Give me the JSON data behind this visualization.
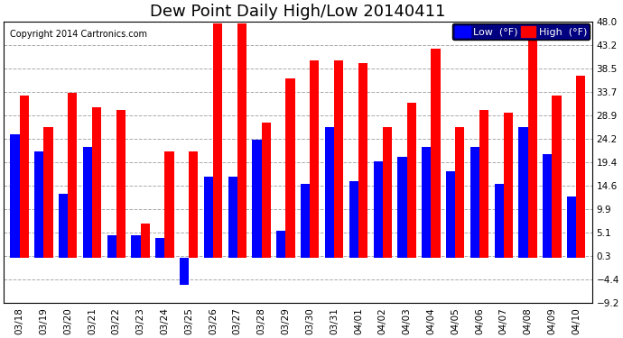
{
  "title": "Dew Point Daily High/Low 20140411",
  "copyright": "Copyright 2014 Cartronics.com",
  "background_color": "#ffffff",
  "grid_color": "#aaaaaa",
  "dates": [
    "03/18",
    "03/19",
    "03/20",
    "03/21",
    "03/22",
    "03/23",
    "03/24",
    "03/25",
    "03/26",
    "03/27",
    "03/28",
    "03/29",
    "03/30",
    "03/31",
    "04/01",
    "04/02",
    "04/03",
    "04/04",
    "04/05",
    "04/06",
    "04/07",
    "04/08",
    "04/09",
    "04/10"
  ],
  "highs": [
    33.0,
    26.5,
    33.5,
    30.5,
    30.0,
    7.0,
    21.5,
    21.5,
    47.5,
    47.5,
    27.5,
    36.5,
    40.0,
    40.0,
    39.5,
    26.5,
    31.5,
    42.5,
    26.5,
    30.0,
    29.5,
    45.0,
    33.0,
    37.0
  ],
  "lows": [
    25.0,
    21.5,
    13.0,
    22.5,
    4.5,
    4.5,
    4.0,
    -5.5,
    16.5,
    16.5,
    24.0,
    5.5,
    15.0,
    26.5,
    15.5,
    19.5,
    20.5,
    22.5,
    17.5,
    22.5,
    15.0,
    26.5,
    21.0,
    12.5
  ],
  "high_color": "#ff0000",
  "low_color": "#0000ff",
  "ylim": [
    -9.2,
    48.0
  ],
  "yticks": [
    -9.2,
    -4.4,
    0.3,
    5.1,
    9.9,
    14.6,
    19.4,
    24.2,
    28.9,
    33.7,
    38.5,
    43.2,
    48.0
  ],
  "title_fontsize": 13,
  "tick_fontsize": 7.5,
  "copyright_fontsize": 7,
  "bar_width": 0.38
}
